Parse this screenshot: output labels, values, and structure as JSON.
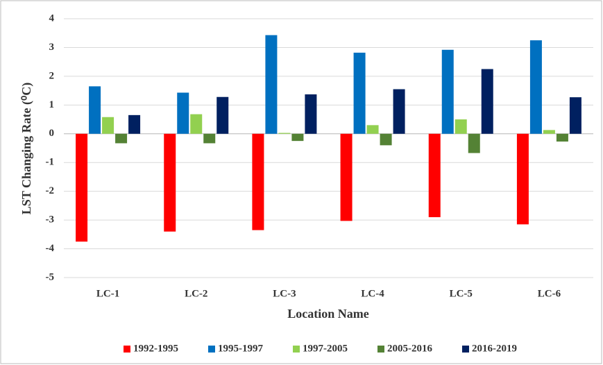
{
  "chart_data": {
    "type": "bar",
    "y_label": "LST Changing Rate (⁰C)",
    "x_label": "Location Name",
    "categories": [
      "LC-1",
      "LC-2",
      "LC-3",
      "LC-4",
      "LC-5",
      "LC-6"
    ],
    "series": [
      {
        "name": "1992-1995",
        "color": "#ff0000",
        "values": [
          -3.75,
          -3.4,
          -3.35,
          -3.03,
          -2.9,
          -3.15
        ]
      },
      {
        "name": "1995-1997",
        "color": "#0070c0",
        "values": [
          1.65,
          1.43,
          3.43,
          2.82,
          2.92,
          3.25
        ]
      },
      {
        "name": "1997-2005",
        "color": "#92d050",
        "values": [
          0.58,
          0.68,
          0.03,
          0.3,
          0.5,
          0.13
        ]
      },
      {
        "name": "2005-2016",
        "color": "#548235",
        "values": [
          -0.33,
          -0.33,
          -0.25,
          -0.4,
          -0.67,
          -0.27
        ]
      },
      {
        "name": "2016-2019",
        "color": "#002060",
        "values": [
          0.65,
          1.28,
          1.37,
          1.55,
          2.25,
          1.27
        ]
      }
    ],
    "ylim": [
      -5,
      4
    ],
    "yticks": [
      4,
      3,
      2,
      1,
      0,
      -1,
      -2,
      -3,
      -4,
      -5
    ],
    "grid": true,
    "legend": "bottom"
  }
}
